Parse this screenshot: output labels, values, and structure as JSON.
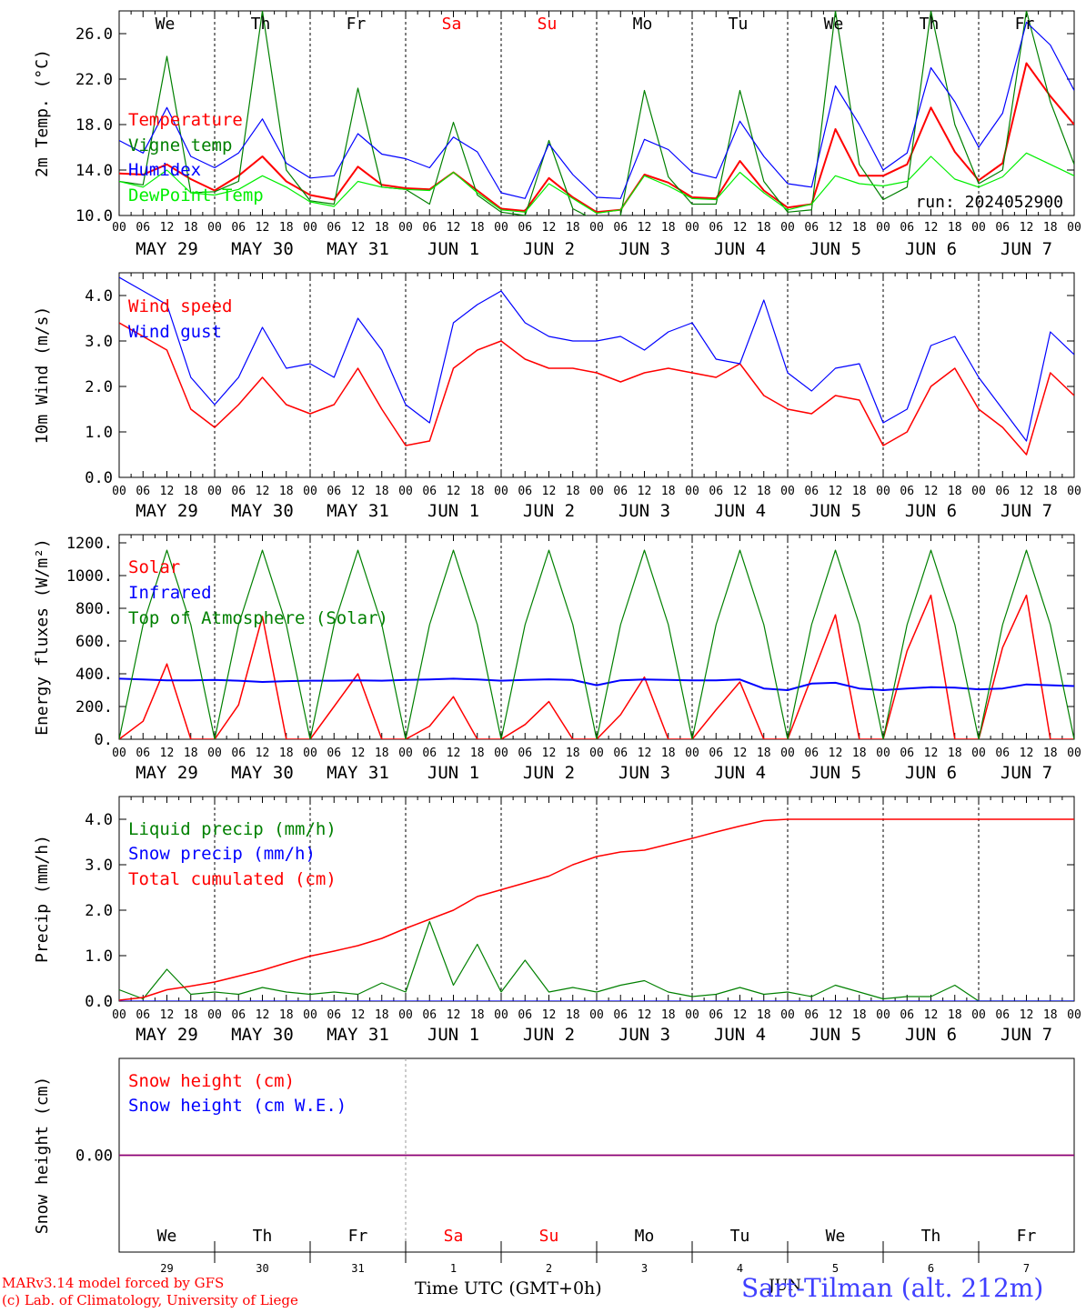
{
  "run_label": "run: 2024052900",
  "footer": {
    "model_line": "MARv3.14 model forced by GFS",
    "credit_line": "(c) Lab. of Climatology, University of Liege",
    "axis_title": "Time UTC (GMT+0h)",
    "month_label": "JUN",
    "station": "Sart-Tilman (alt. 212m)"
  },
  "colors": {
    "red": "#ff0000",
    "green": "#008000",
    "blue": "#0000ff",
    "lightgreen": "#00ee00",
    "purple": "#800080",
    "weekend": "#ff0000"
  },
  "days": [
    {
      "dow": "We",
      "date": "MAY 29",
      "num": "29",
      "weekend": false
    },
    {
      "dow": "Th",
      "date": "MAY 30",
      "num": "30",
      "weekend": false
    },
    {
      "dow": "Fr",
      "date": "MAY 31",
      "num": "31",
      "weekend": false
    },
    {
      "dow": "Sa",
      "date": "JUN  1",
      "num": "1",
      "weekend": true
    },
    {
      "dow": "Su",
      "date": "JUN  2",
      "num": "2",
      "weekend": true
    },
    {
      "dow": "Mo",
      "date": "JUN  3",
      "num": "3",
      "weekend": false
    },
    {
      "dow": "Tu",
      "date": "JUN  4",
      "num": "4",
      "weekend": false
    },
    {
      "dow": "We",
      "date": "JUN  5",
      "num": "5",
      "weekend": false
    },
    {
      "dow": "Th",
      "date": "JUN  6",
      "num": "6",
      "weekend": false
    },
    {
      "dow": "Fr",
      "date": "JUN  7",
      "num": "7",
      "weekend": false
    }
  ],
  "hour_ticks": [
    "00",
    "06",
    "12",
    "18"
  ],
  "chart_data": [
    {
      "type": "line",
      "ylabel": "2m Temp. (°C)",
      "ylim": [
        10,
        28
      ],
      "yticks": [
        "10.0",
        "14.0",
        "18.0",
        "22.0",
        "26.0"
      ],
      "legend": [
        "Temperature",
        "Vigne temp",
        "Humidex",
        "DewPoint Temp"
      ],
      "x_hours": [
        0,
        6,
        12,
        18,
        24,
        30,
        36,
        42,
        48,
        54,
        60,
        66,
        72,
        78,
        84,
        90,
        96,
        102,
        108,
        114,
        120,
        126,
        132,
        138,
        144,
        150,
        156,
        162,
        168,
        174,
        180,
        186,
        192,
        198,
        204,
        210,
        216,
        222,
        228,
        234,
        240
      ],
      "series": [
        {
          "name": "Temperature",
          "values": [
            13.7,
            13.6,
            14.5,
            13.2,
            12.2,
            13.5,
            15.2,
            13.0,
            11.8,
            11.4,
            14.3,
            12.7,
            12.4,
            12.3,
            13.8,
            12.2,
            10.6,
            10.4,
            13.3,
            11.6,
            10.3,
            10.5,
            13.6,
            12.9,
            11.6,
            11.5,
            14.8,
            12.2,
            10.7,
            11.0,
            17.6,
            13.5,
            13.5,
            14.5,
            19.5,
            15.6,
            13.1,
            14.6,
            23.4,
            20.5,
            18.0
          ]
        },
        {
          "name": "Vigne temp",
          "values": [
            13.0,
            12.7,
            24.0,
            12.0,
            12.1,
            13.0,
            28.0,
            14.0,
            11.3,
            11.0,
            21.2,
            12.5,
            12.3,
            11.0,
            18.2,
            11.8,
            10.3,
            10.0,
            16.6,
            10.6,
            9.5,
            10.0,
            21.0,
            13.4,
            11.0,
            11.0,
            21.0,
            13.0,
            10.3,
            10.5,
            28.0,
            14.5,
            11.4,
            12.5,
            28.0,
            18.0,
            12.8,
            14.0,
            28.0,
            20.0,
            14.5
          ]
        },
        {
          "name": "Humidex",
          "values": [
            16.6,
            15.5,
            19.5,
            15.2,
            14.2,
            15.5,
            18.5,
            14.6,
            13.3,
            13.5,
            17.2,
            15.4,
            15.0,
            14.2,
            16.9,
            15.6,
            12.0,
            11.5,
            16.3,
            13.6,
            11.6,
            11.5,
            16.7,
            15.8,
            13.8,
            13.3,
            18.3,
            15.2,
            12.8,
            12.5,
            21.4,
            18.0,
            14.0,
            15.5,
            23.0,
            20.0,
            16.0,
            19.0,
            27.0,
            25.0,
            21.0
          ]
        },
        {
          "name": "DewPoint Temp",
          "values": [
            13.0,
            12.5,
            14.0,
            12.0,
            11.8,
            12.3,
            13.5,
            12.5,
            11.2,
            10.8,
            13.0,
            12.5,
            12.3,
            12.2,
            13.8,
            12.0,
            10.5,
            10.3,
            12.8,
            11.5,
            10.2,
            10.5,
            13.5,
            12.6,
            11.5,
            11.4,
            13.8,
            12.0,
            10.5,
            11.0,
            13.5,
            12.8,
            12.6,
            13.0,
            15.2,
            13.2,
            12.5,
            13.4,
            15.5,
            14.5,
            13.5
          ]
        }
      ]
    },
    {
      "type": "line",
      "ylabel": "10m Wind (m/s)",
      "ylim": [
        0,
        4.5
      ],
      "yticks": [
        "0.0",
        "1.0",
        "2.0",
        "3.0",
        "4.0"
      ],
      "legend": [
        "Wind speed",
        "Wind gust"
      ],
      "x_hours": [
        0,
        6,
        12,
        18,
        24,
        30,
        36,
        42,
        48,
        54,
        60,
        66,
        72,
        78,
        84,
        90,
        96,
        102,
        108,
        114,
        120,
        126,
        132,
        138,
        144,
        150,
        156,
        162,
        168,
        174,
        180,
        186,
        192,
        198,
        204,
        210,
        216,
        222,
        228,
        234,
        240
      ],
      "series": [
        {
          "name": "Wind speed",
          "values": [
            3.4,
            3.1,
            2.8,
            1.5,
            1.1,
            1.6,
            2.2,
            1.6,
            1.4,
            1.6,
            2.4,
            1.5,
            0.7,
            0.8,
            2.4,
            2.8,
            3.0,
            2.6,
            2.4,
            2.4,
            2.3,
            2.1,
            2.3,
            2.4,
            2.3,
            2.2,
            2.5,
            1.8,
            1.5,
            1.4,
            1.8,
            1.7,
            0.7,
            1.0,
            2.0,
            2.4,
            1.5,
            1.1,
            0.5,
            2.3,
            1.8
          ]
        },
        {
          "name": "Wind gust",
          "values": [
            4.4,
            4.1,
            3.8,
            2.2,
            1.6,
            2.2,
            3.3,
            2.4,
            2.5,
            2.2,
            3.5,
            2.8,
            1.6,
            1.2,
            3.4,
            3.8,
            4.1,
            3.4,
            3.1,
            3.0,
            3.0,
            3.1,
            2.8,
            3.2,
            3.4,
            2.6,
            2.5,
            3.9,
            2.3,
            1.9,
            2.4,
            2.5,
            1.2,
            1.5,
            2.9,
            3.1,
            2.2,
            1.5,
            0.8,
            3.2,
            2.7
          ]
        }
      ]
    },
    {
      "type": "line",
      "ylabel": "Energy fluxes (W/m²)",
      "ylim": [
        0,
        1250
      ],
      "yticks": [
        "0.",
        "200.",
        "400.",
        "600.",
        "800.",
        "1000.",
        "1200."
      ],
      "legend": [
        "Solar",
        "Infrared",
        "Top of Atmosphere (Solar)"
      ],
      "x_hours": [
        0,
        6,
        12,
        18,
        24,
        30,
        36,
        42,
        48,
        54,
        60,
        66,
        72,
        78,
        84,
        90,
        96,
        102,
        108,
        114,
        120,
        126,
        132,
        138,
        144,
        150,
        156,
        162,
        168,
        174,
        180,
        186,
        192,
        198,
        204,
        210,
        216,
        222,
        228,
        234,
        240
      ],
      "series": [
        {
          "name": "Solar",
          "values": [
            0,
            110,
            460,
            0,
            0,
            210,
            750,
            0,
            0,
            200,
            400,
            0,
            0,
            80,
            260,
            0,
            0,
            90,
            230,
            0,
            0,
            150,
            380,
            0,
            0,
            180,
            350,
            0,
            0,
            380,
            760,
            0,
            0,
            540,
            880,
            0,
            0,
            560,
            880,
            0,
            0
          ]
        },
        {
          "name": "Infrared",
          "values": [
            370,
            365,
            360,
            360,
            362,
            358,
            350,
            355,
            358,
            358,
            360,
            358,
            362,
            365,
            370,
            365,
            358,
            362,
            366,
            362,
            330,
            360,
            365,
            362,
            360,
            360,
            365,
            310,
            300,
            340,
            345,
            310,
            300,
            310,
            318,
            315,
            305,
            310,
            335,
            330,
            325
          ]
        },
        {
          "name": "Top of Atmosphere (Solar)",
          "values": [
            0,
            700,
            1155,
            700,
            0,
            700,
            1155,
            700,
            0,
            700,
            1155,
            700,
            0,
            700,
            1155,
            700,
            0,
            700,
            1155,
            700,
            0,
            700,
            1155,
            700,
            0,
            700,
            1155,
            700,
            0,
            700,
            1155,
            700,
            0,
            700,
            1155,
            700,
            0,
            700,
            1155,
            700,
            0
          ]
        }
      ]
    },
    {
      "type": "line",
      "ylabel": "Precip (mm/h)",
      "ylim": [
        0,
        4.5
      ],
      "yticks": [
        "0.0",
        "1.0",
        "2.0",
        "3.0",
        "4.0"
      ],
      "legend": [
        "Liquid precip (mm/h)",
        "Snow precip (mm/h)",
        "Total cumulated (cm)"
      ],
      "x_hours": [
        0,
        6,
        12,
        18,
        24,
        30,
        36,
        42,
        48,
        54,
        60,
        66,
        72,
        78,
        84,
        90,
        96,
        102,
        108,
        114,
        120,
        126,
        132,
        138,
        144,
        150,
        156,
        162,
        168,
        174,
        180,
        186,
        192,
        198,
        204,
        210,
        216,
        222,
        228,
        234,
        240
      ],
      "series": [
        {
          "name": "Liquid precip (mm/h)",
          "values": [
            0.25,
            0.05,
            0.7,
            0.15,
            0.2,
            0.15,
            0.3,
            0.2,
            0.15,
            0.2,
            0.15,
            0.4,
            0.2,
            1.75,
            0.35,
            1.25,
            0.2,
            0.9,
            0.2,
            0.3,
            0.2,
            0.35,
            0.45,
            0.2,
            0.1,
            0.15,
            0.3,
            0.15,
            0.2,
            0.1,
            0.35,
            0.2,
            0.05,
            0.1,
            0.1,
            0.35,
            0.0,
            0.0,
            0.0,
            0.0,
            0.0
          ]
        },
        {
          "name": "Snow precip (mm/h)",
          "values": [
            0,
            0,
            0,
            0,
            0,
            0,
            0,
            0,
            0,
            0,
            0,
            0,
            0,
            0,
            0,
            0,
            0,
            0,
            0,
            0,
            0,
            0,
            0,
            0,
            0,
            0,
            0,
            0,
            0,
            0,
            0,
            0,
            0,
            0,
            0,
            0,
            0,
            0,
            0,
            0,
            0
          ]
        },
        {
          "name": "Total cumulated (cm)",
          "values": [
            0.02,
            0.08,
            0.25,
            0.33,
            0.42,
            0.55,
            0.68,
            0.84,
            0.99,
            1.1,
            1.22,
            1.38,
            1.6,
            1.8,
            2.0,
            2.3,
            2.45,
            2.6,
            2.75,
            3.0,
            3.18,
            3.28,
            3.32,
            3.45,
            3.58,
            3.72,
            3.85,
            3.97,
            4.0,
            4.0,
            4.0,
            4.0,
            4.0,
            4.0,
            4.0,
            4.0,
            4.0,
            4.0,
            4.0,
            4.0,
            4.0
          ]
        }
      ]
    },
    {
      "type": "line",
      "ylabel": "Snow height (cm)",
      "ylim": [
        -1,
        1
      ],
      "yticks": [
        "0.00"
      ],
      "legend": [
        "Snow height (cm)",
        "Snow height (cm W.E.)"
      ],
      "x_hours": [
        0,
        240
      ],
      "series": [
        {
          "name": "Snow height (cm)",
          "values": [
            0,
            0
          ]
        },
        {
          "name": "Snow height (cm W.E.)",
          "values": [
            0,
            0
          ]
        }
      ]
    }
  ]
}
